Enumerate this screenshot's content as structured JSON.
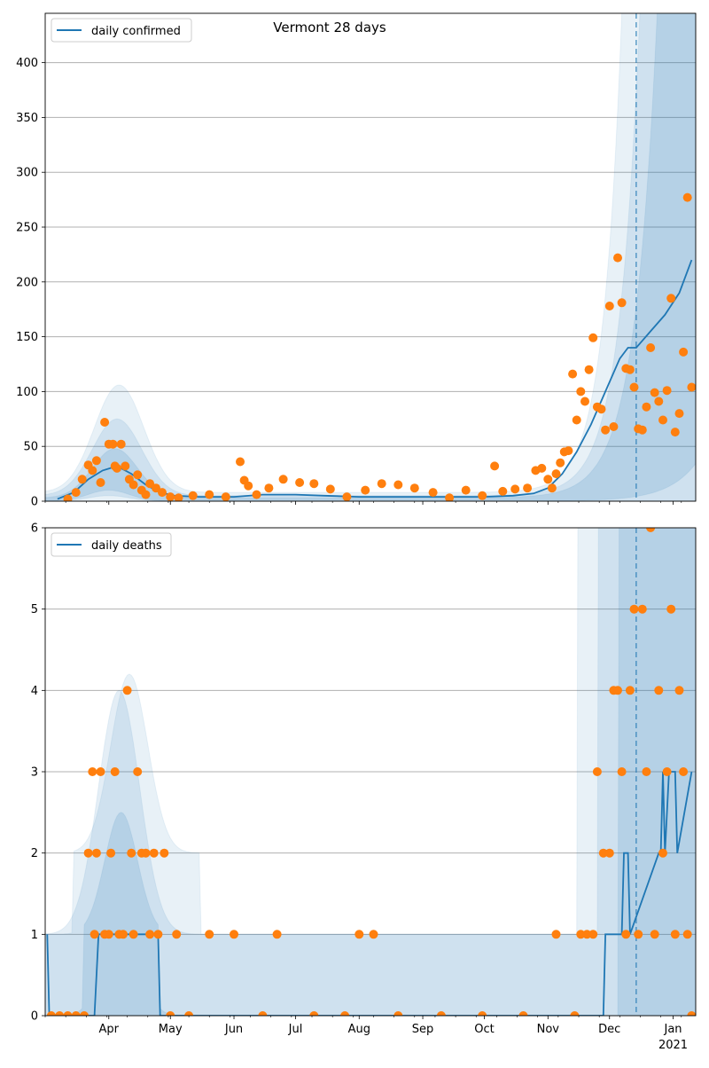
{
  "chart_data": [
    {
      "type": "line",
      "title": "Vermont 28 days",
      "legend": {
        "label": "daily confirmed",
        "placement": "top-left"
      },
      "x_ticks": [
        "Apr",
        "May",
        "Jun",
        "Jul",
        "Aug",
        "Sep",
        "Oct",
        "Nov",
        "Dec",
        "Jan"
      ],
      "x_year_label": "2021",
      "ylim": [
        0,
        445
      ],
      "y_ticks": [
        0,
        50,
        100,
        150,
        200,
        250,
        300,
        350,
        400
      ],
      "grid": true,
      "forecast_start": "2020-12-14",
      "series": [
        {
          "name": "daily confirmed",
          "kind": "fitted-line",
          "x": [
            "2020-03-07",
            "2020-03-15",
            "2020-03-22",
            "2020-03-29",
            "2020-04-05",
            "2020-04-12",
            "2020-04-19",
            "2020-04-26",
            "2020-05-03",
            "2020-05-15",
            "2020-06-01",
            "2020-06-15",
            "2020-07-01",
            "2020-07-15",
            "2020-08-01",
            "2020-08-15",
            "2020-09-01",
            "2020-09-15",
            "2020-10-01",
            "2020-10-15",
            "2020-10-25",
            "2020-11-01",
            "2020-11-08",
            "2020-11-15",
            "2020-11-22",
            "2020-11-29",
            "2020-12-06",
            "2020-12-10",
            "2020-12-14",
            "2020-12-21",
            "2020-12-28",
            "2021-01-04",
            "2021-01-10"
          ],
          "y": [
            2,
            8,
            20,
            28,
            32,
            25,
            15,
            8,
            5,
            4,
            4,
            6,
            6,
            5,
            4,
            4,
            4,
            4,
            4,
            5,
            7,
            12,
            25,
            45,
            70,
            100,
            130,
            140,
            140,
            155,
            170,
            190,
            220
          ]
        },
        {
          "name": "observed",
          "kind": "points",
          "x": [
            "2020-03-12",
            "2020-03-16",
            "2020-03-19",
            "2020-03-22",
            "2020-03-24",
            "2020-03-26",
            "2020-03-28",
            "2020-03-30",
            "2020-04-01",
            "2020-04-03",
            "2020-04-04",
            "2020-04-05",
            "2020-04-07",
            "2020-04-09",
            "2020-04-11",
            "2020-04-13",
            "2020-04-15",
            "2020-04-17",
            "2020-04-19",
            "2020-04-21",
            "2020-04-24",
            "2020-04-27",
            "2020-05-01",
            "2020-05-05",
            "2020-05-12",
            "2020-05-20",
            "2020-05-28",
            "2020-06-04",
            "2020-06-06",
            "2020-06-08",
            "2020-06-12",
            "2020-06-18",
            "2020-06-25",
            "2020-07-03",
            "2020-07-10",
            "2020-07-18",
            "2020-07-26",
            "2020-08-04",
            "2020-08-12",
            "2020-08-20",
            "2020-08-28",
            "2020-09-06",
            "2020-09-14",
            "2020-09-22",
            "2020-09-30",
            "2020-10-06",
            "2020-10-10",
            "2020-10-16",
            "2020-10-22",
            "2020-10-26",
            "2020-10-29",
            "2020-11-01",
            "2020-11-03",
            "2020-11-05",
            "2020-11-07",
            "2020-11-09",
            "2020-11-11",
            "2020-11-13",
            "2020-11-15",
            "2020-11-17",
            "2020-11-19",
            "2020-11-21",
            "2020-11-23",
            "2020-11-25",
            "2020-11-27",
            "2020-11-29",
            "2020-12-01",
            "2020-12-03",
            "2020-12-05",
            "2020-12-07",
            "2020-12-09",
            "2020-12-11",
            "2020-12-13",
            "2020-12-15",
            "2020-12-17",
            "2020-12-19",
            "2020-12-21",
            "2020-12-23",
            "2020-12-25",
            "2020-12-27",
            "2020-12-29",
            "2020-12-31",
            "2021-01-02",
            "2021-01-04",
            "2021-01-06",
            "2021-01-08",
            "2021-01-10"
          ],
          "y": [
            2,
            8,
            20,
            33,
            28,
            37,
            17,
            72,
            52,
            52,
            32,
            30,
            52,
            32,
            20,
            15,
            24,
            10,
            6,
            16,
            12,
            8,
            4,
            3,
            5,
            6,
            4,
            36,
            19,
            14,
            6,
            12,
            20,
            17,
            16,
            11,
            4,
            10,
            16,
            15,
            12,
            8,
            3,
            10,
            5,
            32,
            9,
            11,
            12,
            28,
            30,
            20,
            12,
            25,
            35,
            45,
            46,
            116,
            74,
            100,
            91,
            120,
            149,
            86,
            84,
            65,
            178,
            68,
            222,
            181,
            121,
            120,
            104,
            66,
            65,
            86,
            140,
            99,
            91,
            74,
            101,
            185,
            63,
            80,
            136,
            277,
            104
          ]
        }
      ]
    },
    {
      "type": "line",
      "legend": {
        "label": "daily deaths",
        "placement": "top-left"
      },
      "x_ticks": [
        "Apr",
        "May",
        "Jun",
        "Jul",
        "Aug",
        "Sep",
        "Oct",
        "Nov",
        "Dec",
        "Jan"
      ],
      "x_year_label": "2021",
      "ylim": [
        0,
        6
      ],
      "y_ticks": [
        0,
        1,
        2,
        3,
        4,
        5,
        6
      ],
      "grid": true,
      "forecast_start": "2020-12-14",
      "series": [
        {
          "name": "daily deaths",
          "kind": "fitted-line",
          "x": [
            "2020-03-02",
            "2020-03-03",
            "2020-03-25",
            "2020-03-27",
            "2020-04-25",
            "2020-04-26",
            "2020-11-20",
            "2020-11-28",
            "2020-11-29",
            "2020-12-07",
            "2020-12-08",
            "2020-12-10",
            "2020-12-11",
            "2020-12-25",
            "2020-12-26",
            "2020-12-27",
            "2020-12-28",
            "2020-12-30",
            "2021-01-02",
            "2021-01-03",
            "2021-01-10"
          ],
          "y": [
            1,
            0,
            0,
            1,
            1,
            0,
            0,
            0,
            1,
            1,
            2,
            2,
            1,
            2,
            2,
            3,
            2,
            3,
            3,
            2,
            3
          ]
        },
        {
          "name": "observed",
          "kind": "points",
          "x": [
            "2020-03-04",
            "2020-03-08",
            "2020-03-12",
            "2020-03-16",
            "2020-03-20",
            "2020-03-22",
            "2020-03-24",
            "2020-03-25",
            "2020-03-26",
            "2020-03-28",
            "2020-03-30",
            "2020-04-01",
            "2020-04-02",
            "2020-04-04",
            "2020-04-06",
            "2020-04-08",
            "2020-04-10",
            "2020-04-12",
            "2020-04-13",
            "2020-04-15",
            "2020-04-17",
            "2020-04-19",
            "2020-04-21",
            "2020-04-23",
            "2020-04-25",
            "2020-04-28",
            "2020-05-01",
            "2020-05-04",
            "2020-05-10",
            "2020-05-20",
            "2020-06-01",
            "2020-06-15",
            "2020-06-22",
            "2020-07-10",
            "2020-07-25",
            "2020-08-01",
            "2020-08-08",
            "2020-08-20",
            "2020-09-10",
            "2020-09-30",
            "2020-10-20",
            "2020-11-05",
            "2020-11-14",
            "2020-11-17",
            "2020-11-20",
            "2020-11-23",
            "2020-11-25",
            "2020-11-28",
            "2020-12-01",
            "2020-12-03",
            "2020-12-05",
            "2020-12-07",
            "2020-12-09",
            "2020-12-11",
            "2020-12-13",
            "2020-12-15",
            "2020-12-17",
            "2020-12-19",
            "2020-12-21",
            "2020-12-23",
            "2020-12-25",
            "2020-12-27",
            "2020-12-29",
            "2020-12-31",
            "2021-01-02",
            "2021-01-04",
            "2021-01-06",
            "2021-01-08",
            "2021-01-10"
          ],
          "y": [
            0,
            0,
            0,
            0,
            0,
            2,
            3,
            1,
            2,
            3,
            1,
            1,
            2,
            3,
            1,
            1,
            4,
            2,
            1,
            3,
            2,
            2,
            1,
            2,
            1,
            2,
            0,
            1,
            0,
            1,
            1,
            0,
            1,
            0,
            0,
            1,
            1,
            0,
            0,
            0,
            0,
            1,
            0,
            1,
            1,
            1,
            3,
            2,
            2,
            4,
            4,
            3,
            1,
            4,
            5,
            1,
            5,
            3,
            6,
            1,
            4,
            2,
            3,
            5,
            1,
            4,
            3,
            1,
            0
          ]
        }
      ]
    }
  ]
}
